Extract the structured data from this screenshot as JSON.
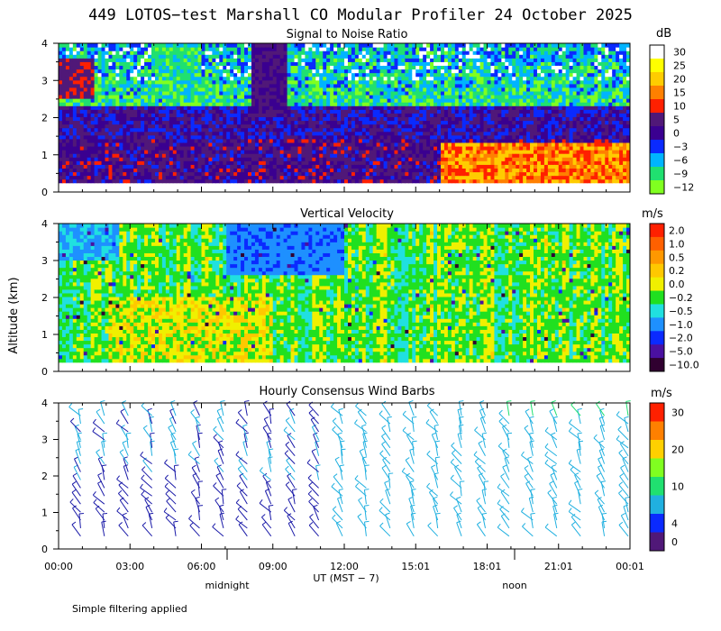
{
  "header": {
    "title": "449 LOTOS−test Marshall CO Modular Profiler 24 October 2025"
  },
  "axes": {
    "ylabel": "Altitude (km)",
    "xlabel": "UT  (MST − 7)",
    "x_ticks": [
      "00:00",
      "03:00",
      "06:00",
      "09:00",
      "12:00",
      "15:01",
      "18:01",
      "21:01",
      "00:01"
    ],
    "y_ticks": [
      "0",
      "1",
      "2",
      "3",
      "4"
    ],
    "local_markers": [
      {
        "label": "midnight",
        "hour": 7
      },
      {
        "label": "noon",
        "hour": 19
      }
    ],
    "ylim": [
      0,
      4
    ],
    "xlim_hours": [
      0,
      24
    ]
  },
  "footer": {
    "note": "Simple filtering applied"
  },
  "chart_data": [
    {
      "type": "heatmap",
      "title": "Signal to Noise Ratio",
      "units": "dB",
      "colorbar": {
        "ticks": [
          "30",
          "25",
          "20",
          "15",
          "10",
          "5",
          "0",
          "−3",
          "−6",
          "−9",
          "−12"
        ],
        "colors": [
          "#ffffff",
          "#ffff00",
          "#ffcc00",
          "#ff8000",
          "#ff2000",
          "#501878",
          "#3a0090",
          "#0a2aff",
          "#00b4ff",
          "#20e070",
          "#80ff20"
        ]
      },
      "data_range_km": [
        0.25,
        4.0
      ]
    },
    {
      "type": "heatmap",
      "title": "Vertical Velocity",
      "units": "m/s",
      "colorbar": {
        "ticks": [
          "2.0",
          "1.0",
          "0.5",
          "0.2",
          "0.0",
          "−0.2",
          "−0.5",
          "−1.0",
          "−2.0",
          "−5.0",
          "−10.0"
        ],
        "colors": [
          "#ff2000",
          "#ff6000",
          "#ff9800",
          "#ffc800",
          "#f0f000",
          "#20e020",
          "#20e0e0",
          "#1e90ff",
          "#0a2aff",
          "#4a10a0",
          "#300030"
        ]
      },
      "data_range_km": [
        0.25,
        4.0
      ]
    },
    {
      "type": "wind_barbs",
      "title": "Hourly Consensus Wind Barbs",
      "units": "m/s",
      "colorbar": {
        "ticks": [
          "30",
          "20",
          "10",
          "4",
          "0"
        ],
        "colors": [
          "#ff2000",
          "#ff8000",
          "#ffd000",
          "#80ff20",
          "#20e070",
          "#20b0e0",
          "#0a2aff",
          "#501878"
        ]
      },
      "hours": [
        1,
        2,
        3,
        4,
        5,
        6,
        7,
        8,
        9,
        10,
        11,
        12,
        13,
        14,
        15,
        16,
        17,
        18,
        19,
        20,
        21,
        22,
        23,
        24
      ]
    }
  ]
}
